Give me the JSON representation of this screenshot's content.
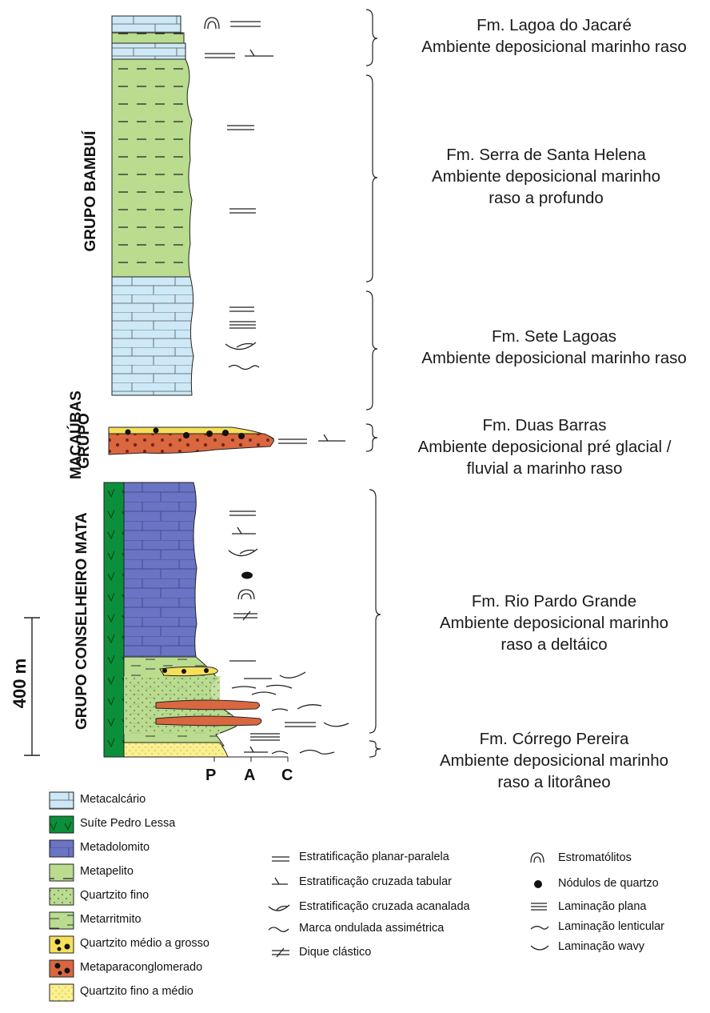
{
  "formations": [
    {
      "name": "Fm. Lagoa do Jacaré",
      "env": [
        "Ambiente deposicional marinho raso"
      ]
    },
    {
      "name": "Fm. Serra de Santa Helena",
      "env": [
        "Ambiente deposicional marinho",
        "raso a profundo"
      ]
    },
    {
      "name": "Fm. Sete Lagoas",
      "env": [
        "Ambiente deposicional marinho raso"
      ]
    },
    {
      "name": "Fm. Duas Barras",
      "env": [
        "Ambiente deposicional pré glacial /",
        "fluvial a marinho raso"
      ]
    },
    {
      "name": "Fm. Rio Pardo Grande",
      "env": [
        "Ambiente deposicional marinho",
        "raso a deltáico"
      ]
    },
    {
      "name": "Fm. Córrego Pereira",
      "env": [
        "Ambiente deposicional marinho",
        "raso a litorâneo"
      ]
    }
  ],
  "groups": [
    "GRUPO BAMBUÍ",
    "GRUPO",
    "MACAÚBAS",
    "GRUPO CONSELHEIRO MATA"
  ],
  "scale_label": "400 m",
  "grain_columns": [
    "P",
    "A",
    "C"
  ],
  "lithology_legend": [
    {
      "label": "Metacalcário",
      "color": "#cde8f7",
      "pattern": "brick"
    },
    {
      "label": "Suíte Pedro Lessa",
      "color": "#0b8f3a",
      "pattern": "v"
    },
    {
      "label": "Metadolomito",
      "color": "#6a74c4",
      "pattern": "brick"
    },
    {
      "label": "Metapelito",
      "color": "#b9dc8f",
      "pattern": "dash"
    },
    {
      "label": "Quartzito fino",
      "color": "#b9dc8f",
      "pattern": "dots"
    },
    {
      "label": "Metarritmito",
      "color": "#b9dc8f",
      "pattern": "lines"
    },
    {
      "label": "Quartzito médio a grosso",
      "color": "#f6e05a",
      "pattern": "bigdots"
    },
    {
      "label": "Metaparaconglomerado",
      "color": "#d9673f",
      "pattern": "blackdots"
    },
    {
      "label": "Quartzito fino a médio",
      "color": "#fbf08f",
      "pattern": "finedots"
    }
  ],
  "structure_legend": [
    {
      "label": "Estratificação planar-paralela",
      "icon": "parallel-lines-icon"
    },
    {
      "label": "Estratificação cruzada tabular",
      "icon": "tabular-cross-icon"
    },
    {
      "label": "Estratificação cruzada acanalada",
      "icon": "trough-cross-icon"
    },
    {
      "label": "Marca ondulada assimétrica",
      "icon": "ripple-icon"
    },
    {
      "label": "Dique clástico",
      "icon": "clastic-dike-icon"
    }
  ],
  "feature_legend": [
    {
      "label": "Estromatólitos",
      "icon": "stromatolite-icon"
    },
    {
      "label": "Nódulos de quartzo",
      "icon": "nodule-icon"
    },
    {
      "label": "Laminação plana",
      "icon": "plane-lamination-icon"
    },
    {
      "label": "Laminação lenticular",
      "icon": "lenticular-icon"
    },
    {
      "label": "Laminação wavy",
      "icon": "wavy-icon"
    }
  ]
}
